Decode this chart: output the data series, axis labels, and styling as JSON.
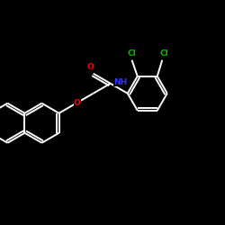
{
  "bg_color": "#000000",
  "bond_color": "#ffffff",
  "atom_colors": {
    "O": "#ff0000",
    "N": "#3333ff",
    "Cl": "#00bb00",
    "C": "#ffffff"
  },
  "bond_width": 1.4,
  "figsize": [
    2.5,
    2.5
  ],
  "dpi": 100,
  "xlim": [
    0,
    10
  ],
  "ylim": [
    0,
    10
  ]
}
